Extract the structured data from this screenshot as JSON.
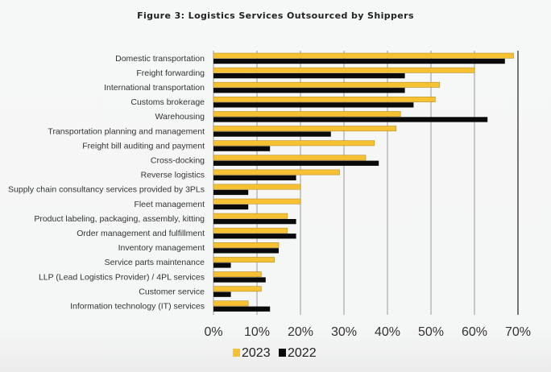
{
  "chart_data": {
    "type": "bar",
    "orientation": "horizontal",
    "title": "Figure 3:  Logistics Services Outsourced by Shippers",
    "xlabel": "",
    "ylabel": "",
    "xlim": [
      0,
      70
    ],
    "x_ticks": [
      "0%",
      "10%",
      "20%",
      "30%",
      "40%",
      "50%",
      "60%",
      "70%"
    ],
    "grid": true,
    "legend_position": "bottom",
    "categories": [
      "Domestic transportation",
      "Freight forwarding",
      "International transportation",
      "Customs brokerage",
      "Warehousing",
      "Transportation planning and management",
      "Freight bill auditing and payment",
      "Cross-docking",
      "Reverse logistics",
      "Supply chain consultancy services provided by 3PLs",
      "Fleet management",
      "Product labeling, packaging, assembly, kitting",
      "Order management and fulfillment",
      "Inventory management",
      "Service parts maintenance",
      "LLP (Lead Logistics Provider) / 4PL services",
      "Customer service",
      "Information technology (IT) services"
    ],
    "series": [
      {
        "name": "2023",
        "color": "#f7c134",
        "values": [
          69,
          60,
          52,
          51,
          43,
          42,
          37,
          35,
          29,
          20,
          20,
          17,
          17,
          15,
          14,
          11,
          11,
          8
        ]
      },
      {
        "name": "2022",
        "color": "#0a0a0a",
        "values": [
          67,
          44,
          44,
          46,
          63,
          27,
          13,
          38,
          19,
          8,
          8,
          19,
          19,
          15,
          4,
          12,
          4,
          13
        ]
      }
    ]
  }
}
